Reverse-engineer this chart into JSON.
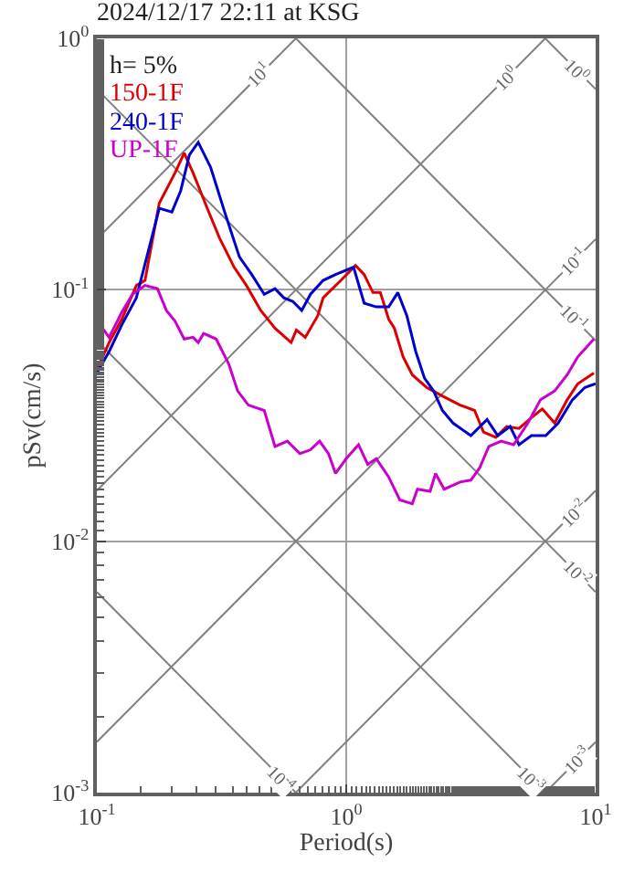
{
  "chart_data": {
    "type": "line",
    "title": "2024/12/17 22:11 at KSG",
    "xlabel": "Period(s)",
    "ylabel": "pSv(cm/s)",
    "log": "xy",
    "grid": true,
    "xlim": [
      0.1,
      10
    ],
    "ylim": [
      0.001,
      1
    ],
    "xticks": [
      {
        "value": 0.1,
        "label": "10$^{-1}$"
      },
      {
        "value": 1,
        "label": "10$^{0}$"
      },
      {
        "value": 10,
        "label": "10$^{1}$"
      }
    ],
    "yticks": [
      {
        "value": 0.001,
        "label": "10$^{-3}$"
      },
      {
        "value": 0.01,
        "label": "10$^{-2}$"
      },
      {
        "value": 0.1,
        "label": "10$^{-1}$"
      },
      {
        "value": 1,
        "label": "10$^{0}$"
      }
    ],
    "annotations": [
      "h= 5%",
      {
        "text": "10$^{1}$",
        "x": 0.45,
        "y": 0.716
      },
      {
        "text": "10$^{0}$",
        "x": 4.4,
        "y": 0.7
      },
      {
        "text": "10$^{0}$",
        "x": 8.4,
        "y": 0.748
      },
      {
        "text": "10$^{-1}$",
        "x": 8.1,
        "y": 0.129
      },
      {
        "text": "10$^{-1}$",
        "x": 8.1,
        "y": 0.0776
      },
      {
        "text": "10$^{-2}$",
        "x": 8.1,
        "y": 0.0129
      },
      {
        "text": "10$^{-2}$",
        "x": 8.4,
        "y": 0.00748
      },
      {
        "text": "10$^{-4}$",
        "x": 0.55,
        "y": 0.00114
      },
      {
        "text": "10$^{-3}$",
        "x": 5.5,
        "y": 0.00114
      },
      {
        "text": "10$^{-3}$",
        "x": 8.4,
        "y": 0.00134
      }
    ],
    "series": [
      {
        "color": "#808080",
        "x": [
          6.28,
          10
        ],
        "values": [
          1,
          0.628
        ]
      },
      {
        "color": "#808080",
        "x": [
          0.628,
          10
        ],
        "values": [
          1,
          0.0628
        ]
      },
      {
        "color": "#808080",
        "x": [
          0.1,
          10
        ],
        "values": [
          0.628,
          0.00628
        ]
      },
      {
        "color": "#808080",
        "x": [
          0.1,
          6.28
        ],
        "values": [
          0.0628,
          0.001
        ]
      },
      {
        "color": "#808080",
        "x": [
          0.1,
          0.628
        ],
        "values": [
          0.00628,
          0.001
        ]
      },
      {
        "color": "#808080",
        "x": [
          0.1,
          0.628
        ],
        "values": [
          0.159,
          1
        ]
      },
      {
        "color": "#808080",
        "x": [
          0.1,
          6.28
        ],
        "values": [
          0.0159,
          1
        ]
      },
      {
        "color": "#808080",
        "x": [
          0.1,
          10
        ],
        "values": [
          0.00159,
          0.159
        ]
      },
      {
        "color": "#808080",
        "x": [
          0.628,
          10
        ],
        "values": [
          0.001,
          0.0159
        ]
      },
      {
        "color": "#808080",
        "x": [
          6.28,
          10
        ],
        "values": [
          0.001,
          0.00159
        ]
      },
      {
        "name": "150-1F",
        "color": "#dd0000",
        "x": [
          0.1,
          0.112,
          0.126,
          0.144,
          0.156,
          0.178,
          0.206,
          0.224,
          0.243,
          0.277,
          0.311,
          0.355,
          0.398,
          0.454,
          0.518,
          0.601,
          0.631,
          0.685,
          0.769,
          0.808,
          0.952,
          1.09,
          1.18,
          1.28,
          1.37,
          1.48,
          1.56,
          1.69,
          1.84,
          2.1,
          2.43,
          2.86,
          3.27,
          3.55,
          3.98,
          4.4,
          4.93,
          5.53,
          6.11,
          6.85,
          7.69,
          8.48,
          9.84
        ],
        "values": [
          0.0482,
          0.0617,
          0.0764,
          0.104,
          0.109,
          0.221,
          0.292,
          0.35,
          0.292,
          0.211,
          0.16,
          0.123,
          0.104,
          0.0828,
          0.0703,
          0.0617,
          0.0692,
          0.0647,
          0.0789,
          0.0929,
          0.109,
          0.125,
          0.115,
          0.0975,
          0.0975,
          0.0764,
          0.0703,
          0.0541,
          0.0459,
          0.0409,
          0.0378,
          0.0348,
          0.0331,
          0.0272,
          0.0259,
          0.0286,
          0.0281,
          0.031,
          0.0336,
          0.0295,
          0.0365,
          0.0423,
          0.0467
        ]
      },
      {
        "name": "240-1F",
        "color": "#0000cc",
        "x": [
          0.1,
          0.112,
          0.126,
          0.144,
          0.178,
          0.2,
          0.217,
          0.235,
          0.255,
          0.286,
          0.327,
          0.373,
          0.418,
          0.469,
          0.518,
          0.562,
          0.61,
          0.663,
          0.719,
          0.808,
          0.906,
          1.07,
          1.18,
          1.32,
          1.48,
          1.61,
          1.75,
          1.9,
          2.06,
          2.24,
          2.43,
          2.68,
          3.16,
          3.67,
          4.05,
          4.54,
          4.93,
          5.53,
          6.31,
          7.08,
          8.07,
          9.06,
          10
        ],
        "values": [
          0.0467,
          0.0568,
          0.0726,
          0.0929,
          0.211,
          0.204,
          0.248,
          0.344,
          0.386,
          0.307,
          0.201,
          0.135,
          0.115,
          0.096,
          0.101,
          0.0929,
          0.0899,
          0.0828,
          0.096,
          0.109,
          0.115,
          0.123,
          0.0885,
          0.0855,
          0.0855,
          0.0975,
          0.0789,
          0.0568,
          0.0445,
          0.0396,
          0.0331,
          0.0295,
          0.0263,
          0.0305,
          0.0263,
          0.0286,
          0.0242,
          0.0263,
          0.0263,
          0.0295,
          0.0365,
          0.0409,
          0.0423
        ]
      },
      {
        "name": "UP-1F",
        "color": "#cc00cc",
        "x": [
          0.1,
          0.103,
          0.112,
          0.126,
          0.139,
          0.156,
          0.175,
          0.19,
          0.206,
          0.224,
          0.243,
          0.255,
          0.268,
          0.301,
          0.338,
          0.367,
          0.405,
          0.469,
          0.518,
          0.581,
          0.652,
          0.719,
          0.782,
          0.849,
          0.906,
          1,
          1.12,
          1.22,
          1.32,
          1.48,
          1.64,
          1.84,
          1.93,
          2.17,
          2.28,
          2.47,
          2.86,
          3.16,
          3.43,
          3.73,
          4.18,
          4.69,
          5.35,
          6.01,
          6.85,
          7.69,
          8.48,
          9.84
        ],
        "values": [
          0.0703,
          0.0726,
          0.0647,
          0.0815,
          0.096,
          0.104,
          0.101,
          0.0828,
          0.075,
          0.0637,
          0.0647,
          0.0617,
          0.067,
          0.0637,
          0.0507,
          0.0396,
          0.0348,
          0.0331,
          0.0238,
          0.025,
          0.0223,
          0.0231,
          0.025,
          0.0223,
          0.0186,
          0.0213,
          0.0242,
          0.0202,
          0.0213,
          0.018,
          0.0146,
          0.0141,
          0.0161,
          0.0158,
          0.0186,
          0.0161,
          0.0172,
          0.0175,
          0.0196,
          0.0238,
          0.025,
          0.0242,
          0.0295,
          0.0365,
          0.0396,
          0.0459,
          0.0541,
          0.0637
        ]
      }
    ]
  }
}
